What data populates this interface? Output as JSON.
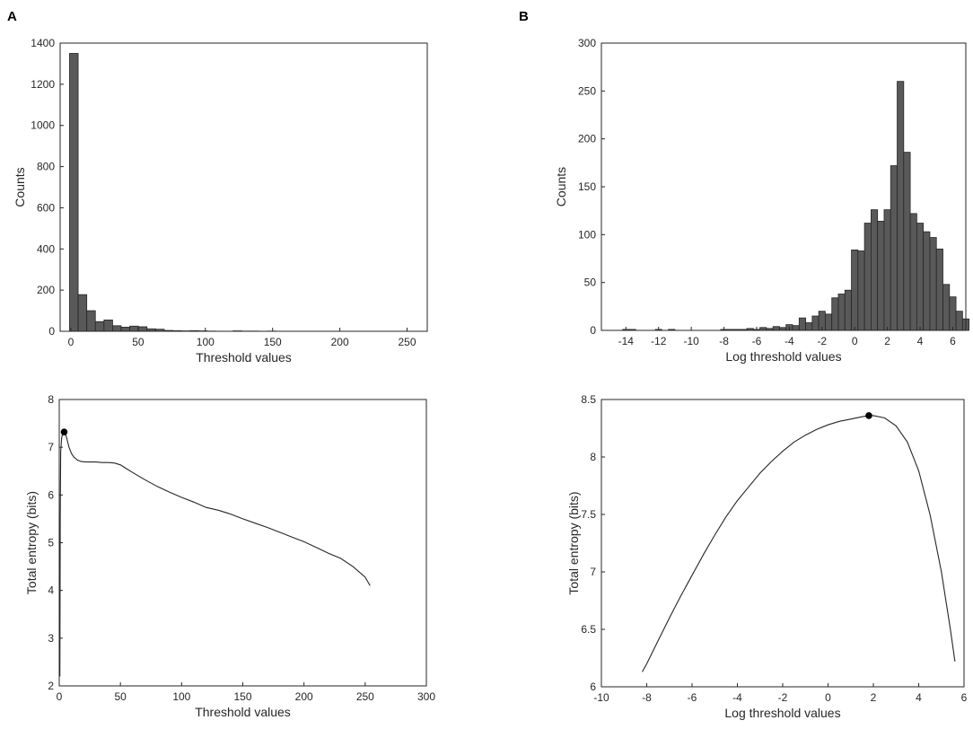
{
  "panel_labels": [
    "A",
    "B"
  ],
  "chart_data": [
    {
      "id": "hist-threshold",
      "panel": "A",
      "type": "bar",
      "xlabel": "Threshold values",
      "ylabel": "Counts",
      "xlim": [
        -8,
        265
      ],
      "ylim": [
        0,
        1400
      ],
      "xticks": [
        0,
        50,
        100,
        150,
        200,
        250
      ],
      "yticks": [
        0,
        200,
        400,
        600,
        800,
        1000,
        1200,
        1400
      ],
      "bin_start": -1,
      "bin_width": 6.4,
      "values": [
        1350,
        178,
        100,
        47,
        55,
        27,
        20,
        25,
        22,
        12,
        10,
        4,
        3,
        2,
        3,
        2,
        1,
        0,
        0,
        2,
        1,
        1,
        0,
        1,
        0
      ]
    },
    {
      "id": "hist-log-threshold",
      "panel": "B",
      "type": "bar",
      "xlabel": "Log threshold values",
      "ylabel": "Counts",
      "xlim": [
        -15.5,
        6.8
      ],
      "ylim": [
        0,
        300
      ],
      "xticks": [
        -14,
        -12,
        -10,
        -8,
        -6,
        -4,
        -2,
        0,
        2,
        4,
        6
      ],
      "yticks": [
        0,
        50,
        100,
        150,
        200,
        250,
        300
      ],
      "bin_start": -14.6,
      "bin_width": 0.4,
      "values": [
        0,
        1,
        1,
        0,
        0,
        0,
        1,
        0,
        1,
        0,
        0,
        0,
        0,
        0,
        0,
        0,
        1,
        1,
        1,
        1,
        2,
        1,
        3,
        2,
        4,
        3,
        6,
        5,
        13,
        8,
        15,
        20,
        17,
        34,
        38,
        42,
        84,
        83,
        112,
        126,
        114,
        126,
        172,
        260,
        186,
        122,
        112,
        103,
        97,
        85,
        48,
        35,
        20,
        12
      ]
    },
    {
      "id": "entropy-threshold",
      "panel": "A",
      "type": "line",
      "xlabel": "Threshold values",
      "ylabel": "Total entropy (bits)",
      "xlim": [
        0,
        300
      ],
      "ylim": [
        2,
        8
      ],
      "xticks": [
        0,
        50,
        100,
        150,
        200,
        250,
        300
      ],
      "yticks": [
        2,
        3,
        4,
        5,
        6,
        7,
        8
      ],
      "x": [
        0.5,
        0.8,
        1.2,
        2,
        3,
        4,
        5,
        6,
        8,
        10,
        12,
        15,
        18,
        22,
        26,
        30,
        35,
        40,
        45,
        50,
        55,
        60,
        70,
        80,
        90,
        100,
        110,
        120,
        130,
        140,
        150,
        160,
        170,
        180,
        190,
        200,
        210,
        220,
        230,
        240,
        250,
        254
      ],
      "y": [
        2.2,
        5.5,
        6.9,
        7.2,
        7.3,
        7.32,
        7.3,
        7.2,
        7.0,
        6.87,
        6.79,
        6.73,
        6.7,
        6.69,
        6.69,
        6.69,
        6.68,
        6.68,
        6.67,
        6.63,
        6.55,
        6.47,
        6.32,
        6.18,
        6.06,
        5.95,
        5.85,
        5.74,
        5.68,
        5.6,
        5.5,
        5.41,
        5.32,
        5.22,
        5.12,
        5.02,
        4.9,
        4.78,
        4.67,
        4.5,
        4.28,
        4.1
      ],
      "marker": {
        "x": 4,
        "y": 7.32
      }
    },
    {
      "id": "entropy-log-threshold",
      "panel": "B",
      "type": "line",
      "xlabel": "Log threshold values",
      "ylabel": "Total entropy (bits)",
      "xlim": [
        -10,
        6
      ],
      "ylim": [
        6,
        8.5
      ],
      "xticks": [
        -10,
        -8,
        -6,
        -4,
        -2,
        0,
        2,
        4,
        6
      ],
      "yticks": [
        6,
        6.5,
        7,
        7.5,
        8,
        8.5
      ],
      "x": [
        -8.2,
        -8,
        -7.5,
        -7,
        -6.5,
        -6,
        -5.5,
        -5,
        -4.5,
        -4,
        -3.5,
        -3,
        -2.5,
        -2,
        -1.5,
        -1,
        -0.5,
        0,
        0.5,
        1,
        1.5,
        1.8,
        2,
        2.5,
        3,
        3.5,
        4,
        4.5,
        5,
        5.2,
        5.4,
        5.6
      ],
      "y": [
        6.13,
        6.2,
        6.4,
        6.6,
        6.79,
        6.97,
        7.15,
        7.32,
        7.48,
        7.62,
        7.74,
        7.86,
        7.96,
        8.05,
        8.13,
        8.19,
        8.24,
        8.28,
        8.31,
        8.33,
        8.35,
        8.36,
        8.36,
        8.34,
        8.27,
        8.13,
        7.88,
        7.5,
        7.0,
        6.75,
        6.5,
        6.22
      ],
      "marker": {
        "x": 1.8,
        "y": 8.36
      }
    }
  ]
}
